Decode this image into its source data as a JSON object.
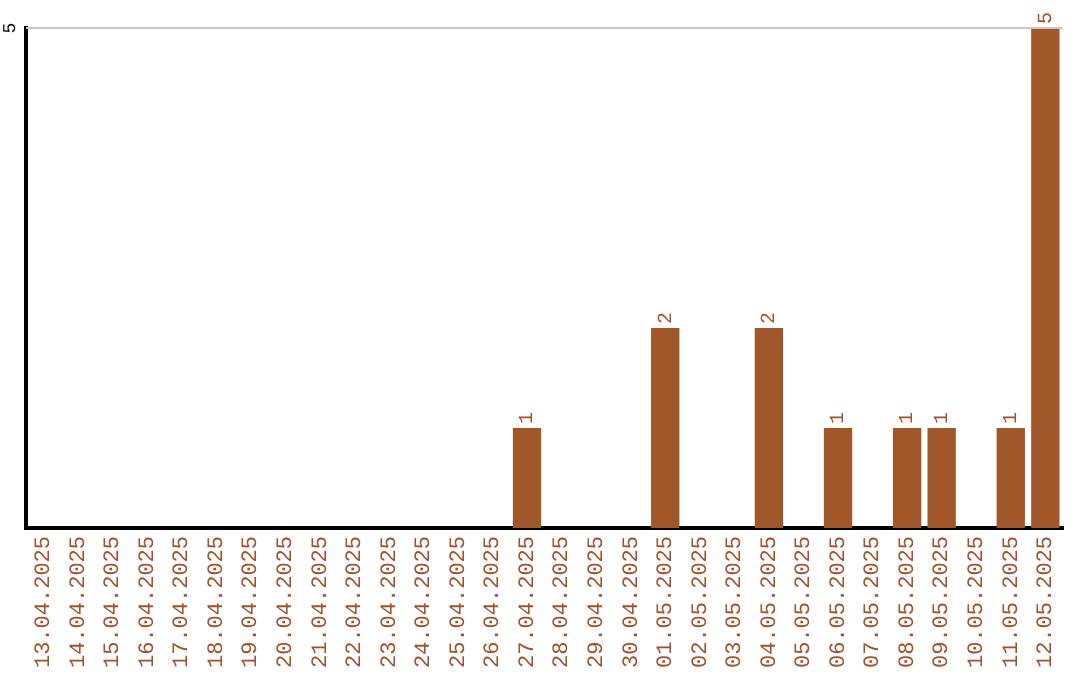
{
  "chart_data": {
    "type": "bar",
    "categories": [
      "13.04.2025",
      "14.04.2025",
      "15.04.2025",
      "16.04.2025",
      "17.04.2025",
      "18.04.2025",
      "19.04.2025",
      "20.04.2025",
      "21.04.2025",
      "22.04.2025",
      "23.04.2025",
      "24.04.2025",
      "25.04.2025",
      "26.04.2025",
      "27.04.2025",
      "28.04.2025",
      "29.04.2025",
      "30.04.2025",
      "01.05.2025",
      "02.05.2025",
      "03.05.2025",
      "04.05.2025",
      "05.05.2025",
      "06.05.2025",
      "07.05.2025",
      "08.05.2025",
      "09.05.2025",
      "10.05.2025",
      "11.05.2025",
      "12.05.2025"
    ],
    "values": [
      null,
      null,
      null,
      null,
      null,
      null,
      null,
      null,
      null,
      null,
      null,
      null,
      null,
      null,
      1,
      null,
      null,
      null,
      2,
      null,
      null,
      2,
      null,
      1,
      null,
      1,
      1,
      null,
      1,
      5
    ],
    "data_labels": true,
    "color": "#a0572a",
    "tick_labels": "x",
    "ref_lines": [
      {
        "axis": "y",
        "value": 5,
        "label": "5",
        "color": "#c8c8c8"
      }
    ],
    "legend": false
  }
}
